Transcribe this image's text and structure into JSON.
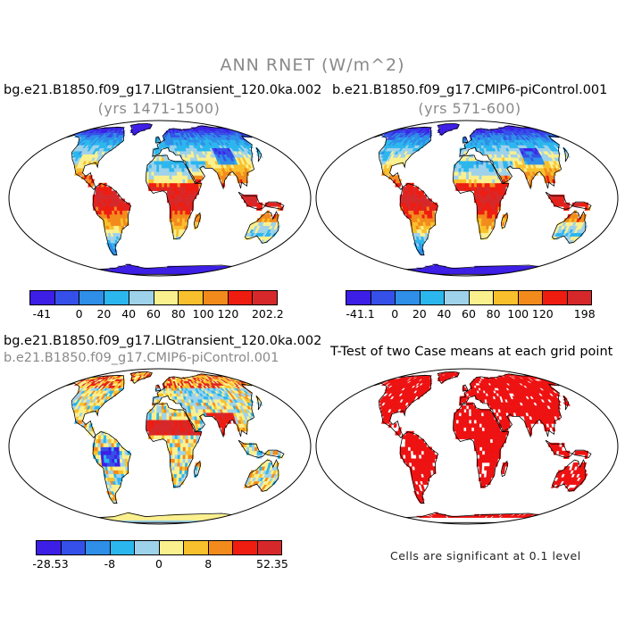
{
  "title": "ANN RNET (W/m^2)",
  "panels": {
    "top_left": {
      "title": "bg.e21.B1850.f09_g17.LIGtransient_120.0ka.002",
      "years": "(yrs 1471-1500)"
    },
    "top_right": {
      "title": "b.e21.B1850.f09_g17.CMIP6-piControl.001",
      "years": "(yrs 571-600)"
    },
    "bottom_left": {
      "title": "bg.e21.B1850.f09_g17.LIGtransient_120.0ka.002",
      "subtitle": "b.e21.B1850.f09_g17.CMIP6-piControl.001"
    },
    "bottom_right": {
      "title": "T-Test of two Case means at each grid point",
      "note": "Cells are significant at 0.1 level"
    }
  },
  "colors": {
    "abs_scale": [
      "#3c1ee6",
      "#3550e8",
      "#2e8ee8",
      "#2cb6ee",
      "#9ed2ea",
      "#fbf08e",
      "#f8c02c",
      "#f38a1c",
      "#ef1c10",
      "#d6282a"
    ],
    "diff_scale": [
      "#3c1ee6",
      "#3550e8",
      "#2e8ee8",
      "#2cb6ee",
      "#9ed2ea",
      "#fbf08e",
      "#f8c02c",
      "#f38a1c",
      "#ef1c10",
      "#d6282a"
    ],
    "significance": "#ee1111"
  },
  "colorbars": {
    "top_left": {
      "ticks": [
        "-41",
        "0",
        "20",
        "40",
        "60",
        "80",
        "100",
        "120",
        "202.2"
      ]
    },
    "top_right": {
      "ticks": [
        "-41.1",
        "0",
        "20",
        "40",
        "60",
        "80",
        "100",
        "120",
        "198"
      ]
    },
    "bottom_left": {
      "ticks": [
        "-28.53",
        "-8",
        "0",
        "8",
        "52.35"
      ]
    }
  }
}
